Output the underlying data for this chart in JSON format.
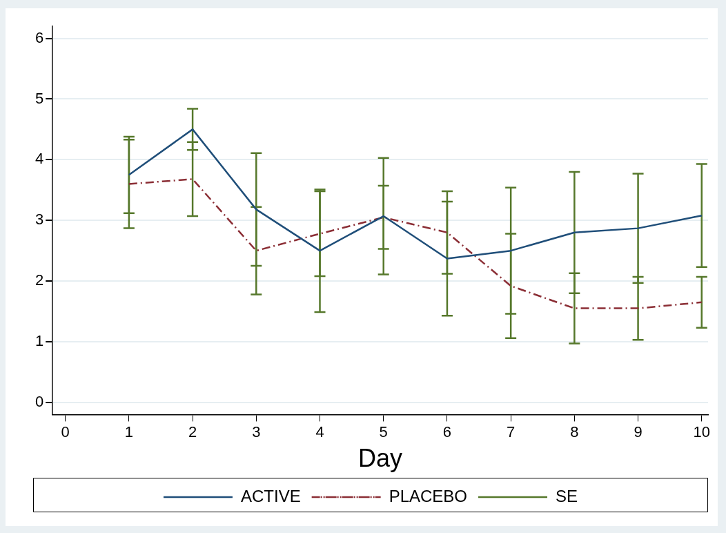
{
  "chart_data": {
    "type": "line",
    "xlabel": "Day",
    "x": [
      1,
      2,
      3,
      4,
      5,
      6,
      7,
      8,
      9,
      10
    ],
    "series": [
      {
        "name": "ACTIVE",
        "color": "#1f4e79",
        "line_style": "solid",
        "values": [
          3.75,
          4.5,
          3.18,
          2.5,
          3.07,
          2.37,
          2.5,
          2.8,
          2.87,
          3.08
        ],
        "errors": [
          0.63,
          0.34,
          0.93,
          1.01,
          0.96,
          0.94,
          1.04,
          1.0,
          0.9,
          0.85
        ]
      },
      {
        "name": "PLACEBO",
        "color": "#8b2e35",
        "line_style": "dashed",
        "values": [
          3.6,
          3.68,
          2.5,
          2.78,
          3.05,
          2.8,
          1.92,
          1.55,
          1.55,
          1.65
        ],
        "errors": [
          0.73,
          0.61,
          0.72,
          0.7,
          0.52,
          0.68,
          0.86,
          0.58,
          0.52,
          0.42
        ]
      },
      {
        "name": "SE",
        "color": "#56782b",
        "values": [
          null,
          null,
          null,
          null,
          null,
          null,
          null,
          null,
          null,
          null
        ]
      }
    ],
    "xlim": [
      -0.2,
      10.1
    ],
    "xticks": [
      0,
      1,
      2,
      3,
      4,
      5,
      6,
      7,
      8,
      9,
      10
    ],
    "ylim": [
      -0.2,
      6.2
    ],
    "yticks": [
      0,
      1,
      2,
      3,
      4,
      5,
      6
    ],
    "grid": "y",
    "legend": "bottom",
    "marker": "none"
  }
}
